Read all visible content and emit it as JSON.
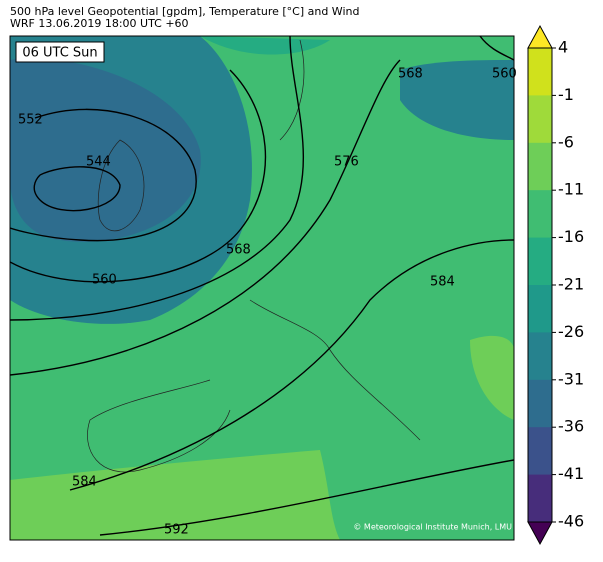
{
  "header": {
    "title": "500 hPa level Geopotential [gpdm], Temperature [°C] and Wind",
    "subtitle": "WRF 13.06.2019 18:00 UTC +60"
  },
  "map": {
    "time_label": "06 UTC Sun",
    "credit": "© Meteorological Institute Munich, LMU",
    "contour_labels": [
      552,
      544,
      560,
      568,
      576,
      584,
      584,
      592,
      568,
      560
    ]
  },
  "colorbar": {
    "lim": [
      -46,
      4
    ],
    "ticks": [
      4,
      -1,
      -6,
      -11,
      -16,
      -21,
      -26,
      -31,
      -36,
      -41,
      -46
    ],
    "colors": [
      "#fde725",
      "#d0e11c",
      "#9fda3a",
      "#6ece58",
      "#40bd72",
      "#25ac82",
      "#1f998a",
      "#26828e",
      "#2e6d8e",
      "#3b528b",
      "#472d7b",
      "#440154"
    ]
  }
}
